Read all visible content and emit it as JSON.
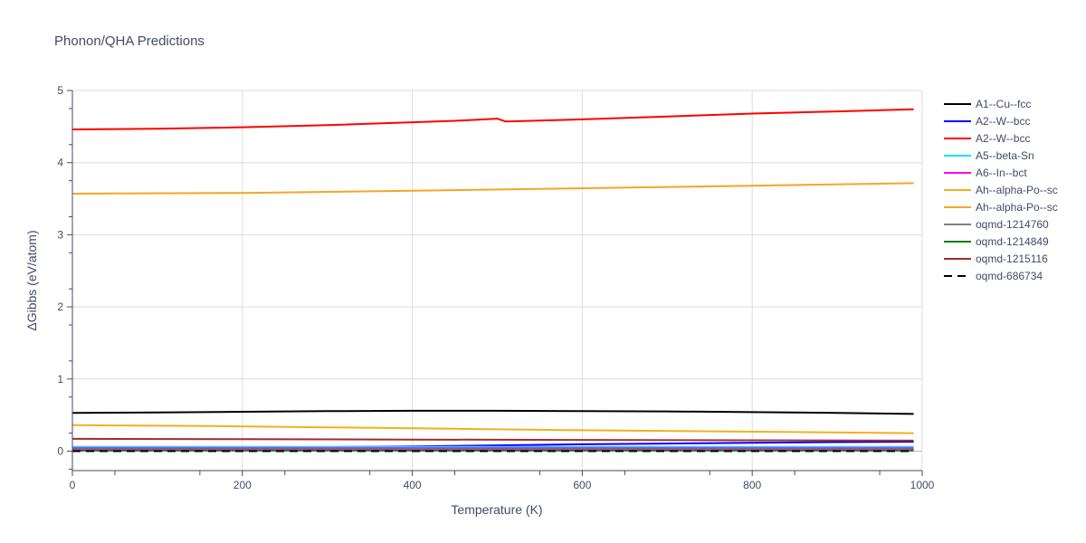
{
  "chart_data": {
    "type": "line",
    "title": "Phonon/QHA Predictions",
    "xlabel": "Temperature (K)",
    "ylabel": "ΔGibbs (eV/atom)",
    "xlim": [
      0,
      1000
    ],
    "ylim": [
      -0.27,
      5.0
    ],
    "x_ticks": [
      0,
      200,
      400,
      600,
      800,
      1000
    ],
    "y_ticks": [
      0,
      1,
      2,
      3,
      4,
      5
    ],
    "grid": true,
    "legend_position": "right",
    "series": [
      {
        "name": "A1--Cu--fcc",
        "color": "#000000",
        "dash": "solid",
        "x": [
          0,
          100,
          200,
          300,
          400,
          500,
          600,
          700,
          800,
          900,
          990
        ],
        "y": [
          0.53,
          0.535,
          0.545,
          0.555,
          0.56,
          0.56,
          0.555,
          0.55,
          0.54,
          0.53,
          0.515
        ]
      },
      {
        "name": "A2--W--bcc",
        "color": "#0000ff",
        "dash": "solid",
        "x": [
          0,
          100,
          200,
          300,
          400,
          500,
          600,
          700,
          800,
          900,
          990
        ],
        "y": [
          0.05,
          0.05,
          0.052,
          0.055,
          0.065,
          0.08,
          0.095,
          0.105,
          0.115,
          0.125,
          0.13
        ]
      },
      {
        "name": "A2--W--bcc",
        "color": "#ff0000",
        "dash": "solid",
        "x": [
          0,
          100,
          200,
          300,
          400,
          450,
          500,
          510,
          600,
          700,
          800,
          900,
          990
        ],
        "y": [
          4.46,
          4.47,
          4.49,
          4.52,
          4.56,
          4.58,
          4.61,
          4.57,
          4.6,
          4.64,
          4.68,
          4.71,
          4.74
        ]
      },
      {
        "name": "A5--beta-Sn",
        "color": "#00e5ff",
        "dash": "solid",
        "x": [
          0,
          200,
          400,
          600,
          800,
          990
        ],
        "y": [
          0.06,
          0.06,
          0.06,
          0.06,
          0.06,
          0.06
        ]
      },
      {
        "name": "A6--In--bct",
        "color": "#ff00ff",
        "dash": "solid",
        "x": [
          0,
          200,
          400,
          600,
          800,
          990
        ],
        "y": [
          0.04,
          0.04,
          0.04,
          0.04,
          0.04,
          0.04
        ]
      },
      {
        "name": "Ah--alpha-Po--sc",
        "color": "#f2b01e",
        "dash": "solid",
        "x": [
          0,
          150,
          300,
          450,
          600,
          800,
          990
        ],
        "y": [
          0.36,
          0.35,
          0.33,
          0.31,
          0.29,
          0.27,
          0.25
        ]
      },
      {
        "name": "Ah--alpha-Po--sc",
        "color": "#f5a623",
        "dash": "solid",
        "x": [
          0,
          200,
          400,
          600,
          800,
          990
        ],
        "y": [
          3.57,
          3.58,
          3.61,
          3.645,
          3.68,
          3.715
        ]
      },
      {
        "name": "oqmd-1214760",
        "color": "#808080",
        "dash": "solid",
        "x": [
          0,
          200,
          400,
          600,
          800,
          990
        ],
        "y": [
          0.02,
          0.02,
          0.02,
          0.02,
          0.02,
          0.02
        ]
      },
      {
        "name": "oqmd-1214849",
        "color": "#008000",
        "dash": "solid",
        "x": [
          0,
          200,
          400,
          600,
          800,
          990
        ],
        "y": [
          0.01,
          0.01,
          0.01,
          0.01,
          0.01,
          0.01
        ]
      },
      {
        "name": "oqmd-1215116",
        "color": "#a52a2a",
        "dash": "solid",
        "x": [
          0,
          200,
          400,
          600,
          800,
          990
        ],
        "y": [
          0.17,
          0.165,
          0.16,
          0.155,
          0.15,
          0.145
        ]
      },
      {
        "name": "oqmd-686734",
        "color": "#000000",
        "dash": "dash",
        "x": [
          0,
          200,
          400,
          600,
          800,
          990
        ],
        "y": [
          0.0,
          0.0,
          0.0,
          0.0,
          0.0,
          0.0
        ]
      }
    ]
  }
}
